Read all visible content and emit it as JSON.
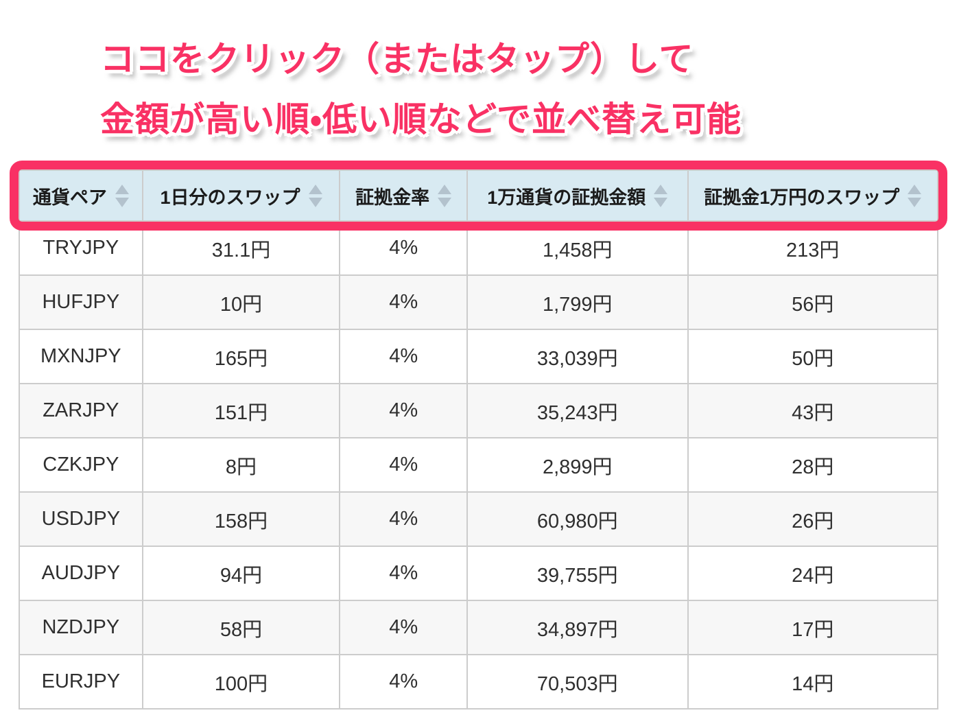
{
  "annotation": {
    "line1": "ココをクリック（またはタップ）して",
    "line2": "金額が高い順・低い順などで並べ替え可能"
  },
  "table": {
    "columns": [
      {
        "label": "通貨ペア",
        "sortable": true
      },
      {
        "label": "1日分のスワップ",
        "sortable": true
      },
      {
        "label": "証拠金率",
        "sortable": true
      },
      {
        "label": "1万通貨の証拠金額",
        "sortable": true
      },
      {
        "label": "証拠金1万円のスワップ",
        "sortable": true
      }
    ],
    "rows": [
      [
        "TRYJPY",
        "31.1円",
        "4%",
        "1,458円",
        "213円"
      ],
      [
        "HUFJPY",
        "10円",
        "4%",
        "1,799円",
        "56円"
      ],
      [
        "MXNJPY",
        "165円",
        "4%",
        "33,039円",
        "50円"
      ],
      [
        "ZARJPY",
        "151円",
        "4%",
        "35,243円",
        "43円"
      ],
      [
        "CZKJPY",
        "8円",
        "4%",
        "2,899円",
        "28円"
      ],
      [
        "USDJPY",
        "158円",
        "4%",
        "60,980円",
        "26円"
      ],
      [
        "AUDJPY",
        "94円",
        "4%",
        "39,755円",
        "24円"
      ],
      [
        "NZDJPY",
        "58円",
        "4%",
        "34,897円",
        "17円"
      ],
      [
        "EURJPY",
        "100円",
        "4%",
        "70,503円",
        "14円"
      ]
    ]
  },
  "colors": {
    "accent_pink": "#f93164",
    "header_bg": "#d8eaf2",
    "sort_arrow": "#b3c2cd",
    "row_alt_bg": "#f7f7f7",
    "grid_border": "#cccccc",
    "cell_text": "#2f2f2f"
  }
}
